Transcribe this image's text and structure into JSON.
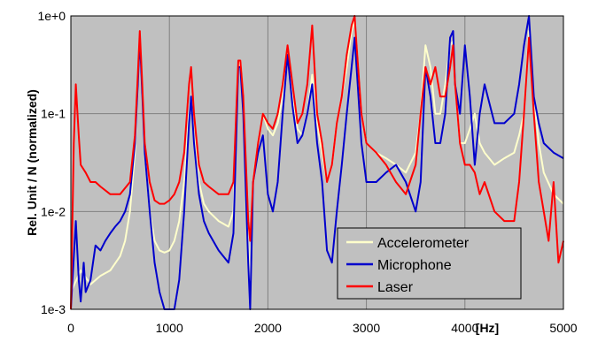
{
  "chart_data": {
    "type": "line",
    "xlabel": "[Hz]",
    "ylabel": "Rel. Unit / N  (normalized)",
    "xlim": [
      0,
      5000
    ],
    "ylim": [
      0.001,
      1
    ],
    "yscale": "log",
    "grid": true,
    "legend_position": "bottom-right",
    "x_ticks": [
      "0",
      "1000",
      "2000",
      "3000",
      "4000",
      "5000"
    ],
    "x_tick_values": [
      0,
      1000,
      2000,
      3000,
      4000,
      5000
    ],
    "y_ticks": [
      "1e-3",
      "1e-2",
      "1e-1",
      "1e+0"
    ],
    "y_tick_values": [
      0.001,
      0.01,
      0.1,
      1
    ],
    "colors": {
      "plot_background": "#c0c0c0",
      "grid": "#808080",
      "accelerometer": "#ffffcc",
      "microphone": "#0000cc",
      "laser": "#ff0000"
    },
    "series": [
      {
        "name": "Accelerometer",
        "color": "#ffffcc",
        "x": [
          0,
          100,
          200,
          300,
          400,
          500,
          550,
          600,
          650,
          680,
          700,
          720,
          750,
          800,
          850,
          900,
          950,
          1000,
          1050,
          1100,
          1150,
          1200,
          1220,
          1250,
          1300,
          1350,
          1400,
          1500,
          1600,
          1650,
          1700,
          1720,
          1750,
          1800,
          1820,
          1850,
          1900,
          1950,
          2000,
          2050,
          2100,
          2150,
          2200,
          2250,
          2300,
          2350,
          2400,
          2450,
          2500,
          2550,
          2600,
          2650,
          2700,
          2750,
          2800,
          2850,
          2880,
          2900,
          2950,
          3000,
          3100,
          3200,
          3300,
          3400,
          3500,
          3550,
          3600,
          3650,
          3700,
          3750,
          3800,
          3850,
          3880,
          3900,
          3950,
          4000,
          4050,
          4100,
          4150,
          4200,
          4300,
          4400,
          4500,
          4550,
          4600,
          4650,
          4700,
          4750,
          4800,
          4900,
          5000
        ],
        "values": [
          0.0015,
          0.0025,
          0.0018,
          0.0022,
          0.0025,
          0.0035,
          0.005,
          0.01,
          0.04,
          0.2,
          0.6,
          0.2,
          0.04,
          0.01,
          0.005,
          0.004,
          0.0038,
          0.004,
          0.005,
          0.008,
          0.02,
          0.1,
          0.15,
          0.06,
          0.02,
          0.012,
          0.01,
          0.008,
          0.007,
          0.01,
          0.3,
          0.35,
          0.15,
          0.005,
          0.0015,
          0.02,
          0.05,
          0.1,
          0.07,
          0.06,
          0.08,
          0.15,
          0.4,
          0.15,
          0.07,
          0.06,
          0.1,
          0.25,
          0.08,
          0.04,
          0.02,
          0.03,
          0.08,
          0.15,
          0.3,
          0.7,
          0.9,
          0.5,
          0.1,
          0.05,
          0.04,
          0.035,
          0.03,
          0.025,
          0.04,
          0.1,
          0.5,
          0.3,
          0.1,
          0.1,
          0.2,
          0.5,
          0.55,
          0.2,
          0.05,
          0.05,
          0.07,
          0.1,
          0.05,
          0.04,
          0.03,
          0.035,
          0.04,
          0.06,
          0.1,
          0.7,
          0.15,
          0.05,
          0.025,
          0.015,
          0.012
        ]
      },
      {
        "name": "Microphone",
        "color": "#0000cc",
        "x": [
          0,
          50,
          80,
          100,
          130,
          150,
          200,
          250,
          300,
          350,
          400,
          450,
          500,
          550,
          600,
          650,
          680,
          700,
          720,
          750,
          800,
          850,
          900,
          950,
          1000,
          1050,
          1100,
          1150,
          1200,
          1220,
          1250,
          1300,
          1350,
          1400,
          1500,
          1600,
          1650,
          1700,
          1720,
          1750,
          1800,
          1820,
          1850,
          1900,
          1950,
          2000,
          2050,
          2100,
          2150,
          2200,
          2250,
          2300,
          2350,
          2400,
          2450,
          2500,
          2550,
          2600,
          2650,
          2700,
          2750,
          2800,
          2850,
          2880,
          2900,
          2950,
          3000,
          3100,
          3200,
          3300,
          3400,
          3500,
          3550,
          3600,
          3650,
          3700,
          3750,
          3800,
          3850,
          3880,
          3900,
          3950,
          4000,
          4050,
          4100,
          4150,
          4200,
          4300,
          4400,
          4500,
          4550,
          4600,
          4650,
          4700,
          4750,
          4800,
          4900,
          5000
        ],
        "values": [
          0.001,
          0.008,
          0.002,
          0.0012,
          0.003,
          0.0015,
          0.002,
          0.0045,
          0.004,
          0.005,
          0.006,
          0.007,
          0.008,
          0.01,
          0.015,
          0.05,
          0.2,
          0.6,
          0.2,
          0.04,
          0.01,
          0.003,
          0.0015,
          0.001,
          0.0009,
          0.001,
          0.002,
          0.01,
          0.08,
          0.15,
          0.05,
          0.015,
          0.008,
          0.006,
          0.004,
          0.003,
          0.006,
          0.3,
          0.3,
          0.1,
          0.003,
          0.001,
          0.02,
          0.04,
          0.06,
          0.015,
          0.01,
          0.02,
          0.1,
          0.4,
          0.12,
          0.05,
          0.06,
          0.1,
          0.2,
          0.05,
          0.02,
          0.004,
          0.003,
          0.01,
          0.03,
          0.1,
          0.3,
          0.6,
          0.3,
          0.05,
          0.02,
          0.02,
          0.025,
          0.03,
          0.02,
          0.01,
          0.02,
          0.3,
          0.15,
          0.05,
          0.05,
          0.1,
          0.6,
          0.7,
          0.2,
          0.1,
          0.5,
          0.15,
          0.03,
          0.1,
          0.2,
          0.08,
          0.08,
          0.1,
          0.2,
          0.5,
          1.0,
          0.15,
          0.08,
          0.05,
          0.04,
          0.035
        ]
      },
      {
        "name": "Laser",
        "color": "#ff0000",
        "x": [
          0,
          30,
          50,
          80,
          100,
          150,
          200,
          250,
          300,
          400,
          500,
          600,
          650,
          680,
          700,
          720,
          750,
          800,
          850,
          900,
          950,
          1000,
          1050,
          1100,
          1150,
          1200,
          1220,
          1250,
          1300,
          1350,
          1400,
          1500,
          1600,
          1650,
          1700,
          1720,
          1750,
          1800,
          1820,
          1850,
          1900,
          1950,
          2000,
          2050,
          2100,
          2150,
          2200,
          2250,
          2300,
          2350,
          2400,
          2450,
          2500,
          2550,
          2600,
          2650,
          2700,
          2750,
          2800,
          2850,
          2880,
          2900,
          2950,
          3000,
          3100,
          3200,
          3300,
          3400,
          3500,
          3550,
          3600,
          3650,
          3700,
          3750,
          3800,
          3850,
          3880,
          3900,
          3950,
          4000,
          4050,
          4100,
          4150,
          4200,
          4300,
          4400,
          4500,
          4550,
          4600,
          4650,
          4700,
          4750,
          4800,
          4850,
          4900,
          4950,
          5000
        ],
        "values": [
          0.001,
          0.05,
          0.2,
          0.06,
          0.03,
          0.025,
          0.02,
          0.02,
          0.018,
          0.015,
          0.015,
          0.02,
          0.06,
          0.25,
          0.7,
          0.25,
          0.05,
          0.02,
          0.013,
          0.012,
          0.012,
          0.013,
          0.015,
          0.02,
          0.04,
          0.2,
          0.3,
          0.1,
          0.03,
          0.02,
          0.018,
          0.015,
          0.015,
          0.02,
          0.35,
          0.35,
          0.15,
          0.008,
          0.005,
          0.02,
          0.05,
          0.1,
          0.08,
          0.07,
          0.1,
          0.2,
          0.5,
          0.2,
          0.08,
          0.1,
          0.2,
          0.8,
          0.1,
          0.05,
          0.02,
          0.03,
          0.08,
          0.15,
          0.4,
          0.8,
          1.0,
          0.5,
          0.1,
          0.05,
          0.04,
          0.03,
          0.02,
          0.015,
          0.03,
          0.1,
          0.3,
          0.2,
          0.3,
          0.15,
          0.15,
          0.3,
          0.5,
          0.2,
          0.05,
          0.03,
          0.03,
          0.025,
          0.015,
          0.02,
          0.01,
          0.008,
          0.008,
          0.02,
          0.1,
          0.6,
          0.1,
          0.02,
          0.01,
          0.005,
          0.02,
          0.003,
          0.005
        ]
      }
    ]
  }
}
